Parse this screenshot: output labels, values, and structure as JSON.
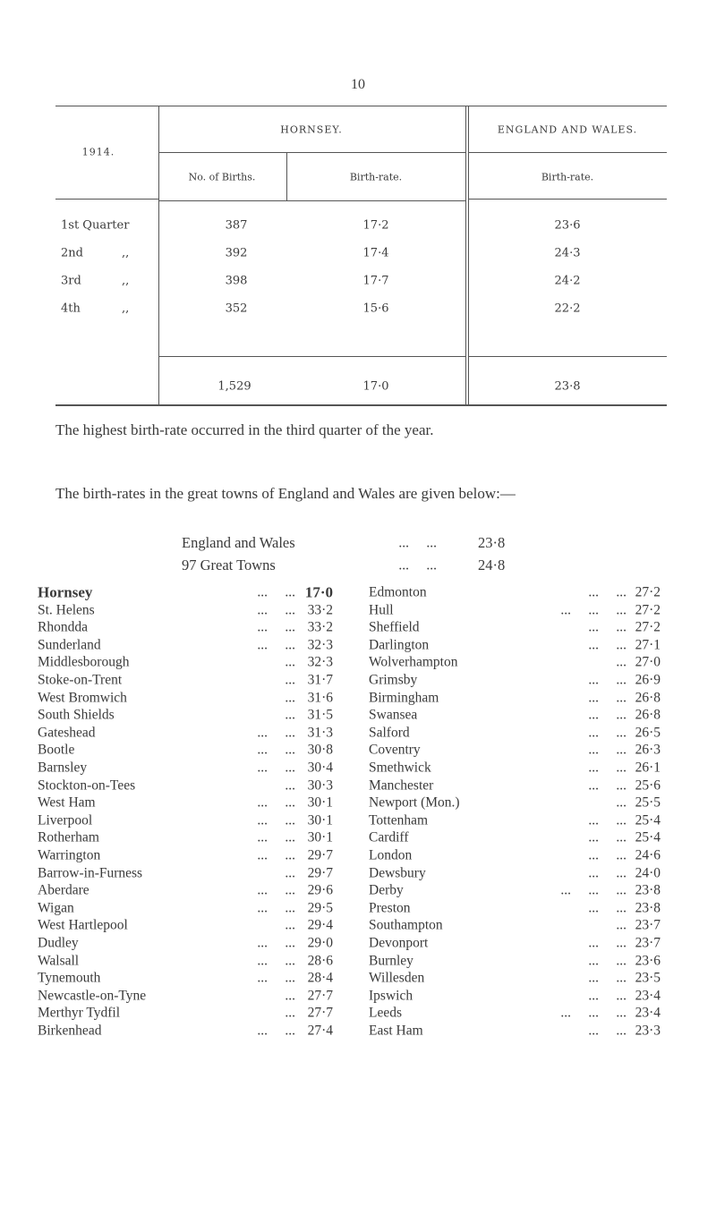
{
  "page_number": "10",
  "table": {
    "year": "1914.",
    "groups": [
      "HORNSEY.",
      "ENGLAND AND WALES."
    ],
    "columns": [
      "No. of Births.",
      "Birth-rate.",
      "Birth-rate."
    ],
    "rows": [
      {
        "label": "1st Quarter",
        "births": "387",
        "rate": "17·2",
        "ew_rate": "23·6"
      },
      {
        "label": "2nd",
        "ditto": ",,",
        "births": "392",
        "rate": "17·4",
        "ew_rate": "24·3"
      },
      {
        "label": "3rd",
        "ditto": ",,",
        "births": "398",
        "rate": "17·7",
        "ew_rate": "24·2"
      },
      {
        "label": "4th",
        "ditto": ",,",
        "births": "352",
        "rate": "15·6",
        "ew_rate": "22·2"
      }
    ],
    "total": {
      "births": "1,529",
      "rate": "17·0",
      "ew_rate": "23·8"
    }
  },
  "paragraphs": [
    "The highest birth-rate occurred in the third quarter of the year.",
    "The birth-rates in the great towns of England and Wales are given below:—"
  ],
  "summary": [
    {
      "name": "England and Wales",
      "leader": "...     ...",
      "value": "23·8"
    },
    {
      "name": "97 Great Towns",
      "leader": "...     ...",
      "value": "24·8"
    }
  ],
  "towns": {
    "left": [
      {
        "name": "Hornsey",
        "leader": "...     ...",
        "value": "17·0"
      },
      {
        "name": "St. Helens",
        "leader": "...     ...",
        "value": "33·2"
      },
      {
        "name": "Rhondda",
        "leader": "...     ...",
        "value": "33·2"
      },
      {
        "name": "Sunderland",
        "leader": "...     ...",
        "value": "32·3"
      },
      {
        "name": "Middlesborough",
        "leader": "...",
        "value": "32·3"
      },
      {
        "name": "Stoke-on-Trent",
        "leader": "...",
        "value": "31·7"
      },
      {
        "name": "West Bromwich",
        "leader": "...",
        "value": "31·6"
      },
      {
        "name": "South Shields",
        "leader": "...",
        "value": "31·5"
      },
      {
        "name": "Gateshead",
        "leader": "...     ...",
        "value": "31·3"
      },
      {
        "name": "Bootle",
        "leader": "...     ...",
        "value": "30·8"
      },
      {
        "name": "Barnsley",
        "leader": "...     ...",
        "value": "30·4"
      },
      {
        "name": "Stockton-on-Tees",
        "leader": "...",
        "value": "30·3"
      },
      {
        "name": "West Ham",
        "leader": "...     ...",
        "value": "30·1"
      },
      {
        "name": "Liverpool",
        "leader": "...     ...",
        "value": "30·1"
      },
      {
        "name": "Rotherham",
        "leader": "...     ...",
        "value": "30·1"
      },
      {
        "name": "Warrington",
        "leader": "...     ...",
        "value": "29·7"
      },
      {
        "name": "Barrow-in-Furness",
        "leader": "...",
        "value": "29·7"
      },
      {
        "name": "Aberdare",
        "leader": "...     ...",
        "value": "29·6"
      },
      {
        "name": "Wigan",
        "leader": "...     ...",
        "value": "29·5"
      },
      {
        "name": "West Hartlepool",
        "leader": "...",
        "value": "29·4"
      },
      {
        "name": "Dudley",
        "leader": "...     ...",
        "value": "29·0"
      },
      {
        "name": "Walsall",
        "leader": "...     ...",
        "value": "28·6"
      },
      {
        "name": "Tynemouth",
        "leader": "...     ...",
        "value": "28·4"
      },
      {
        "name": "Newcastle-on-Tyne",
        "leader": "...",
        "value": "27·7"
      },
      {
        "name": "Merthyr Tydfil",
        "leader": "...",
        "value": "27·7"
      },
      {
        "name": "Birkenhead",
        "leader": "...     ...",
        "value": "27·4"
      }
    ],
    "right": [
      {
        "name": "Edmonton",
        "leader": "...     ...",
        "value": "27·2"
      },
      {
        "name": "Hull",
        "leader": "...     ...     ...",
        "value": "27·2"
      },
      {
        "name": "Sheffield",
        "leader": "...     ...",
        "value": "27·2"
      },
      {
        "name": "Darlington",
        "leader": "...     ...",
        "value": "27·1"
      },
      {
        "name": "Wolverhampton",
        "leader": "...",
        "value": "27·0"
      },
      {
        "name": "Grimsby",
        "leader": "...     ...",
        "value": "26·9"
      },
      {
        "name": "Birmingham",
        "leader": "...     ...",
        "value": "26·8"
      },
      {
        "name": "Swansea",
        "leader": "...     ...",
        "value": "26·8"
      },
      {
        "name": "Salford",
        "leader": "...     ...",
        "value": "26·5"
      },
      {
        "name": "Coventry",
        "leader": "...     ...",
        "value": "26·3"
      },
      {
        "name": "Smethwick",
        "leader": "...     ...",
        "value": "26·1"
      },
      {
        "name": "Manchester",
        "leader": "...     ...",
        "value": "25·6"
      },
      {
        "name": "Newport (Mon.)",
        "leader": "...",
        "value": "25·5"
      },
      {
        "name": "Tottenham",
        "leader": "...     ...",
        "value": "25·4"
      },
      {
        "name": "Cardiff",
        "leader": "...     ...",
        "value": "25·4"
      },
      {
        "name": "London",
        "leader": "...     ...",
        "value": "24·6"
      },
      {
        "name": "Dewsbury",
        "leader": "...     ...",
        "value": "24·0"
      },
      {
        "name": "Derby",
        "leader": "...     ...     ...",
        "value": "23·8"
      },
      {
        "name": "Preston",
        "leader": "...     ...",
        "value": "23·8"
      },
      {
        "name": "Southampton",
        "leader": "...",
        "value": "23·7"
      },
      {
        "name": "Devonport",
        "leader": "...     ...",
        "value": "23·7"
      },
      {
        "name": "Burnley",
        "leader": "...     ...",
        "value": "23·6"
      },
      {
        "name": "Willesden",
        "leader": "...     ...",
        "value": "23·5"
      },
      {
        "name": "Ipswich",
        "leader": "...     ...",
        "value": "23·4"
      },
      {
        "name": "Leeds",
        "leader": "...     ...     ...",
        "value": "23·4"
      },
      {
        "name": "East Ham",
        "leader": "...     ...",
        "value": "23·3"
      }
    ]
  }
}
